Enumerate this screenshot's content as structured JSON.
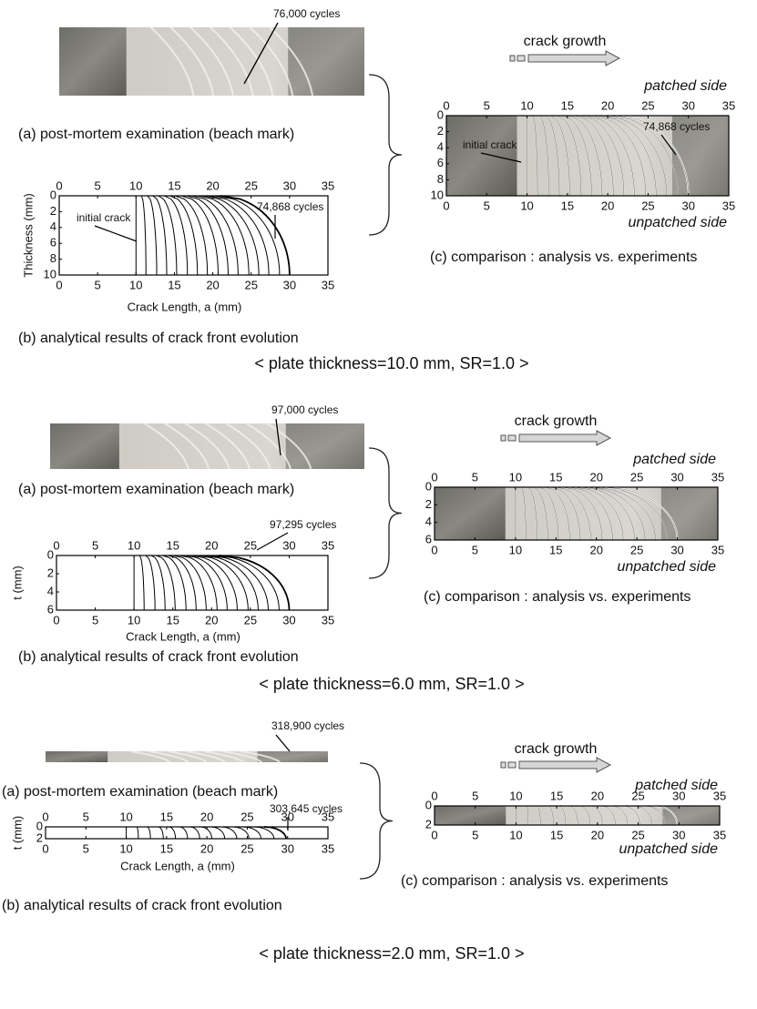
{
  "panels": [
    {
      "photo_cycles": "76,000 cycles",
      "caption_a": "(a) post-mortem examination (beach mark)",
      "plot_b": {
        "ylabel": "Thickness (mm)",
        "xlabel": "Crack Length, a (mm)",
        "xlim": [
          0,
          35
        ],
        "xticks": [
          0,
          5,
          10,
          15,
          20,
          25,
          30,
          35
        ],
        "ylim": [
          0,
          10
        ],
        "yticks": [
          0,
          2,
          4,
          6,
          8,
          10
        ],
        "annotations": [
          "initial crack",
          "74,868 cycles"
        ],
        "fronts": {
          "surface_a": [
            10,
            10.7,
            11.5,
            12.2,
            12.9,
            13.7,
            14.4,
            15.1,
            15.9,
            16.6,
            17.3,
            18.1,
            18.8,
            19.5,
            20.3,
            21
          ],
          "bottom_a": [
            10,
            11.3,
            12.7,
            14,
            15.3,
            16.7,
            18,
            19.3,
            20.7,
            22,
            23.3,
            24.7,
            26,
            27.3,
            28.7,
            30
          ]
        }
      },
      "caption_b": "(b) analytical results of crack front evolution",
      "growth_label": "crack growth",
      "plot_c": {
        "patched_label": "patched side",
        "unpatched_label": "unpatched side",
        "xlim": [
          0,
          35
        ],
        "xticks": [
          0,
          5,
          10,
          15,
          20,
          25,
          30,
          35
        ],
        "ylim": [
          0,
          10
        ],
        "yticks": [
          0,
          2,
          4,
          6,
          8,
          10
        ],
        "annotations": [
          "initial crack",
          "74,868 cycles"
        ]
      },
      "caption_c": "(c) comparison : analysis vs. experiments",
      "footer": "< plate thickness=10.0 mm,  SR=1.0 >"
    },
    {
      "photo_cycles": "97,000 cycles",
      "caption_a": "(a) post-mortem examination (beach mark)",
      "plot_b": {
        "ylabel": "t (mm)",
        "xlabel": "Crack Length, a (mm)",
        "xlim": [
          0,
          35
        ],
        "xticks": [
          0,
          5,
          10,
          15,
          20,
          25,
          30,
          35
        ],
        "ylim": [
          0,
          6
        ],
        "yticks": [
          0,
          2,
          4,
          6
        ],
        "annotations": [
          "97,295 cycles"
        ],
        "fronts": {
          "surface_a": [
            10,
            10.7,
            11.5,
            12.2,
            12.9,
            13.7,
            14.4,
            15.1,
            15.9,
            16.6,
            17.3,
            18.1,
            18.8,
            19.5,
            20.3,
            21
          ],
          "bottom_a": [
            10,
            11.3,
            12.7,
            14,
            15.3,
            16.7,
            18,
            19.3,
            20.7,
            22,
            23.3,
            24.7,
            26,
            27.3,
            28.7,
            30
          ]
        }
      },
      "caption_b": "(b) analytical results of crack front evolution",
      "growth_label": "crack growth",
      "plot_c": {
        "patched_label": "patched side",
        "unpatched_label": "unpatched side",
        "xlim": [
          0,
          35
        ],
        "xticks": [
          0,
          5,
          10,
          15,
          20,
          25,
          30,
          35
        ],
        "ylim": [
          0,
          6
        ],
        "yticks": [
          0,
          2,
          4,
          6
        ],
        "annotations": []
      },
      "caption_c": "(c) comparison : analysis vs. experiments",
      "footer": "< plate thickness=6.0 mm,  SR=1.0 >"
    },
    {
      "photo_cycles": "318,900 cycles",
      "caption_a": "(a) post-mortem examination (beach mark)",
      "plot_b": {
        "ylabel": "t (mm)",
        "xlabel": "Crack Length, a (mm)",
        "xlim": [
          0,
          35
        ],
        "xticks": [
          0,
          5,
          10,
          15,
          20,
          25,
          30,
          35
        ],
        "ylim": [
          0,
          2
        ],
        "yticks": [
          0,
          2
        ],
        "annotations": [
          "303,645 cycles"
        ],
        "fronts": {
          "surface_a": [
            10,
            11.3,
            12.6,
            14,
            15.3,
            16.6,
            17.9,
            19.2,
            20.5,
            21.8,
            23.2,
            24.5,
            25.8,
            27.1
          ],
          "bottom_a": [
            10,
            11.5,
            13,
            14.6,
            16.1,
            17.6,
            19.1,
            20.6,
            22.2,
            23.7,
            25.2,
            26.7,
            28.3,
            29.8
          ]
        }
      },
      "caption_b": "(b) analytical results of crack front evolution",
      "growth_label": "crack growth",
      "plot_c": {
        "patched_label": "patched side",
        "unpatched_label": "unpatched side",
        "xlim": [
          0,
          35
        ],
        "xticks": [
          0,
          5,
          10,
          15,
          20,
          25,
          30,
          35
        ],
        "ylim": [
          0,
          2
        ],
        "yticks": [
          0,
          2
        ],
        "annotations": []
      },
      "caption_c": "(c) comparison : analysis vs. experiments",
      "footer": "< plate thickness=2.0 mm,  SR=1.0 >"
    }
  ]
}
